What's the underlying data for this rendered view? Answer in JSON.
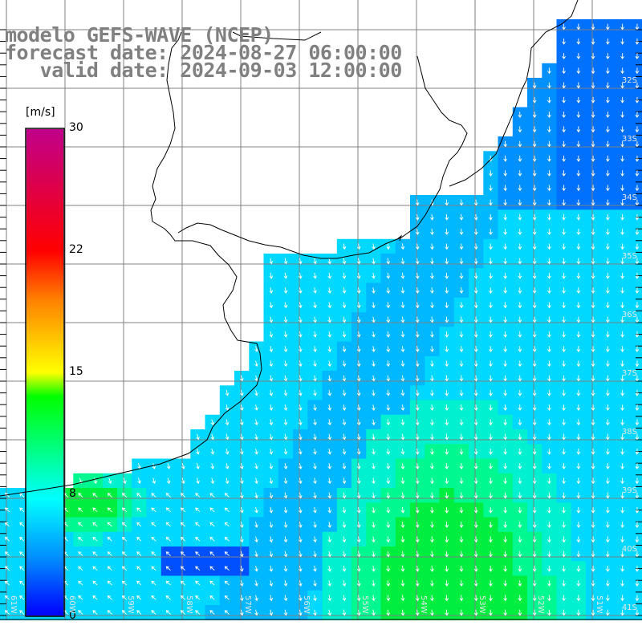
{
  "header": {
    "model_line": "modelo GEFS-WAVE (NCEP)",
    "forecast_line": "forecast date: 2024-08-27 06:00:00",
    "valid_line": "   valid date: 2024-09-03 12:00:00"
  },
  "colorbar": {
    "unit": "[m/s]",
    "ticks": [
      {
        "label": "30",
        "value": 30
      },
      {
        "label": "22",
        "value": 22
      },
      {
        "label": "15",
        "value": 15
      },
      {
        "label": "8",
        "value": 8
      },
      {
        "label": "0",
        "value": 0
      }
    ],
    "colors": [
      "#0000ff",
      "#0090ff",
      "#00ffff",
      "#00ff00",
      "#ffff00",
      "#ff8000",
      "#ff0000",
      "#c0008a"
    ]
  },
  "map": {
    "lat_labels": [
      "32S",
      "33S",
      "34S",
      "35S",
      "36S",
      "37S",
      "38S",
      "39S",
      "40S",
      "41S"
    ],
    "lon_labels": [
      "61W",
      "60W",
      "59W",
      "58W",
      "57W",
      "56W",
      "55W",
      "54W",
      "53W",
      "52W",
      "51W"
    ],
    "coastline_color": "#000000",
    "grid_color": "#808080",
    "land_color": "#ffffff",
    "arrow_color": "#ffffff"
  }
}
